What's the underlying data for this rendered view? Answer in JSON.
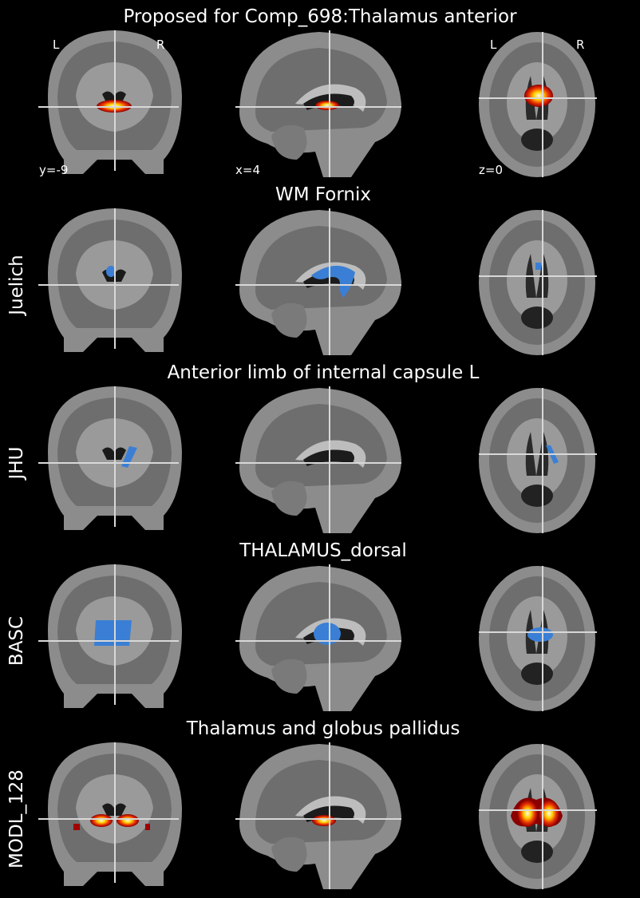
{
  "title": "Proposed for Comp_698:Thalamus anterior",
  "orientation": {
    "left": "L",
    "right": "R"
  },
  "coords": [
    "y=-9",
    "x=4",
    "z=0"
  ],
  "rows": [
    {
      "atlas": "Juelich",
      "region": "WM Fornix"
    },
    {
      "atlas": "JHU",
      "region": "Anterior limb of internal capsule L"
    },
    {
      "atlas": "BASC",
      "region": "THALAMUS_dorsal"
    },
    {
      "atlas": "MODL_128",
      "region": "Thalamus and globus pallidus"
    }
  ]
}
